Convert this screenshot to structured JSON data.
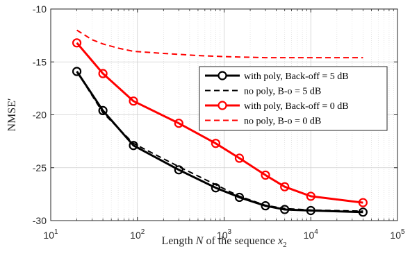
{
  "chart_data": {
    "type": "line",
    "xlabel": {
      "prefix": "Length ",
      "var": "N",
      "mid": " of the sequence ",
      "sym": "x",
      "sub": "2"
    },
    "ylabel": "NMSE′",
    "xscale": "log",
    "xlim": [
      10,
      100000
    ],
    "ylim": [
      -30,
      -10
    ],
    "xticks": [
      {
        "value": 10,
        "base": "10",
        "exp": "1"
      },
      {
        "value": 100,
        "base": "10",
        "exp": "2"
      },
      {
        "value": 1000,
        "base": "10",
        "exp": "3"
      },
      {
        "value": 10000,
        "base": "10",
        "exp": "4"
      },
      {
        "value": 100000,
        "base": "10",
        "exp": "5"
      }
    ],
    "yticks": [
      -10,
      -15,
      -20,
      -25,
      -30
    ],
    "grid": true,
    "legend_position": "right",
    "series": [
      {
        "name": "with poly, Back-off = 5 dB",
        "color": "#000000",
        "style": "solid",
        "marker": "circle",
        "x": [
          20,
          40,
          90,
          300,
          800,
          1500,
          3000,
          5000,
          10000,
          40000
        ],
        "y": [
          -15.9,
          -19.6,
          -22.9,
          -25.2,
          -26.9,
          -27.8,
          -28.6,
          -28.95,
          -29.05,
          -29.2
        ]
      },
      {
        "name": "no poly, B-o = 5 dB",
        "color": "#000000",
        "style": "dashed",
        "marker": "none",
        "x": [
          20,
          40,
          90,
          300,
          800,
          1500,
          3000,
          5000,
          10000,
          40000
        ],
        "y": [
          -15.9,
          -19.8,
          -22.7,
          -24.9,
          -26.6,
          -27.7,
          -28.55,
          -28.85,
          -29.0,
          -29.1
        ]
      },
      {
        "name": "with poly, Back-off = 0 dB",
        "color": "#ff0000",
        "style": "solid",
        "marker": "circle",
        "x": [
          20,
          40,
          90,
          300,
          800,
          1500,
          3000,
          5000,
          10000,
          40000
        ],
        "y": [
          -13.2,
          -16.1,
          -18.7,
          -20.8,
          -22.7,
          -24.1,
          -25.7,
          -26.8,
          -27.7,
          -28.3
        ]
      },
      {
        "name": "no poly, B-o = 0 dB",
        "color": "#ff0000",
        "style": "dashed",
        "marker": "none",
        "x": [
          20,
          30,
          40,
          60,
          90,
          200,
          500,
          1000,
          3000,
          10000,
          40000
        ],
        "y": [
          -12.0,
          -12.9,
          -13.3,
          -13.7,
          -14.0,
          -14.2,
          -14.4,
          -14.5,
          -14.6,
          -14.6,
          -14.6
        ]
      }
    ]
  }
}
